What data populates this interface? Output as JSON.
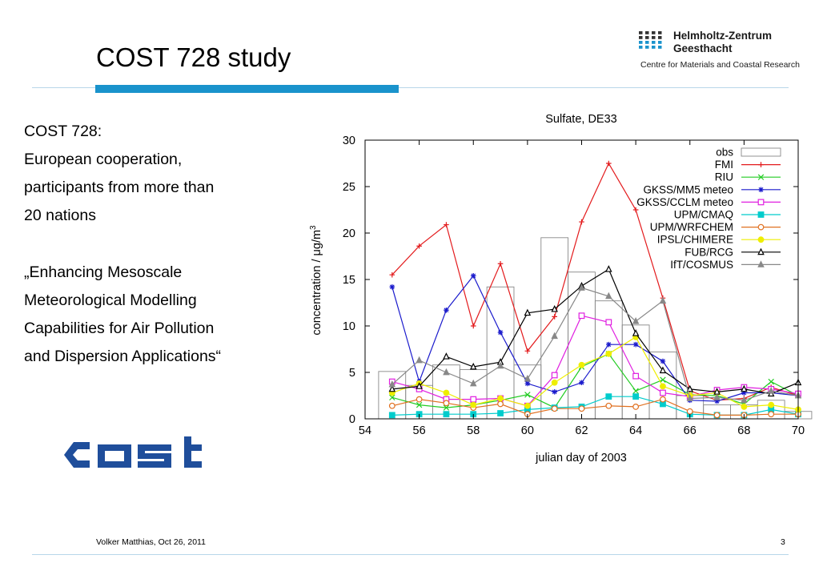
{
  "slide": {
    "title": "COST 728 study",
    "logo": {
      "name_line1": "Helmholtz-Zentrum",
      "name_line2": "Geesthacht",
      "subtitle": "Centre for Materials and Coastal Research",
      "brand_color": "#1a93cc"
    },
    "paragraphs": [
      [
        "COST 728:",
        "European cooperation,",
        "participants from more than",
        "20 nations"
      ],
      [
        "„Enhancing Mesoscale",
        "Meteorological Modelling",
        "Capabilities for Air Pollution",
        "and Dispersion Applications“"
      ]
    ],
    "cost_logo": "cost",
    "footer": {
      "author_date": "Volker Matthias, Oct 26, 2011",
      "page_number": "3"
    }
  },
  "chart_data": {
    "type": "line",
    "title": "Sulfate, DE33",
    "xlabel": "julian day of 2003",
    "ylabel_prefix": "concentration / ",
    "ylabel_unit": "μg/m",
    "ylabel_sup": "3",
    "xlim": [
      54,
      70
    ],
    "ylim": [
      0,
      30
    ],
    "xticks": [
      54,
      56,
      58,
      60,
      62,
      64,
      66,
      68,
      70
    ],
    "yticks": [
      0,
      5,
      10,
      15,
      20,
      25,
      30
    ],
    "grid": false,
    "legend_position": "top-right",
    "bars": {
      "name": "obs",
      "x": [
        55,
        56,
        57,
        58,
        59,
        60,
        61,
        62,
        63,
        64,
        65,
        66,
        67,
        68,
        69,
        70
      ],
      "values": [
        5.1,
        3.6,
        5.8,
        5.3,
        14.2,
        5.8,
        19.5,
        15.8,
        12.7,
        10.1,
        7.2,
        2.5,
        1.5,
        1.5,
        2.0,
        0.8
      ]
    },
    "x": [
      55,
      56,
      57,
      58,
      59,
      60,
      61,
      62,
      63,
      64,
      65,
      66,
      67,
      68,
      69,
      70
    ],
    "series": [
      {
        "name": "FMI",
        "color": "#e31a1c",
        "marker": "plus",
        "values": [
          15.5,
          18.6,
          20.9,
          10.0,
          16.7,
          7.3,
          11.0,
          21.2,
          27.5,
          22.5,
          13.0,
          3.0,
          2.0,
          2.2,
          3.4,
          2.5
        ]
      },
      {
        "name": "RIU",
        "color": "#22cc22",
        "marker": "x",
        "values": [
          2.3,
          1.5,
          1.2,
          1.5,
          2.0,
          2.6,
          1.2,
          5.6,
          7.0,
          3.0,
          4.2,
          2.6,
          2.5,
          1.6,
          4.0,
          2.5
        ]
      },
      {
        "name": "GKSS/MM5 meteo",
        "color": "#1a1acc",
        "marker": "star",
        "values": [
          14.2,
          4.0,
          11.7,
          15.4,
          9.3,
          3.8,
          2.9,
          3.9,
          8.0,
          8.0,
          6.2,
          2.0,
          1.9,
          2.8,
          2.8,
          2.5
        ]
      },
      {
        "name": "GKSS/CCLM meteo",
        "color": "#e020e0",
        "marker": "square-open",
        "values": [
          4.0,
          3.2,
          2.1,
          2.1,
          2.2,
          1.4,
          4.7,
          11.1,
          10.4,
          4.6,
          2.8,
          2.4,
          3.1,
          3.4,
          3.2,
          2.7
        ]
      },
      {
        "name": "UPM/CMAQ",
        "color": "#00cccc",
        "marker": "square-filled",
        "values": [
          0.4,
          0.5,
          0.5,
          0.5,
          0.6,
          1.0,
          1.2,
          1.3,
          2.4,
          2.4,
          1.6,
          0.5,
          0.4,
          0.4,
          1.0,
          0.5
        ]
      },
      {
        "name": "UPM/WRFCHEM",
        "color": "#e07020",
        "marker": "circle-open",
        "values": [
          1.4,
          2.1,
          1.7,
          1.2,
          1.6,
          0.5,
          1.1,
          1.1,
          1.4,
          1.3,
          2.1,
          0.8,
          0.4,
          0.4,
          0.5,
          0.5
        ]
      },
      {
        "name": "IPSL/CHIMERE",
        "color": "#eeee00",
        "marker": "circle-filled",
        "values": [
          2.8,
          3.8,
          2.8,
          1.5,
          2.2,
          1.4,
          3.9,
          5.8,
          7.0,
          8.8,
          3.5,
          2.5,
          2.8,
          1.3,
          1.5,
          1.0
        ]
      },
      {
        "name": "FUB/RCG",
        "color": "#000000",
        "marker": "triangle-open",
        "values": [
          3.2,
          3.5,
          6.7,
          5.6,
          6.1,
          11.4,
          11.8,
          14.3,
          16.1,
          9.2,
          5.2,
          3.2,
          2.9,
          3.2,
          2.7,
          3.9
        ]
      },
      {
        "name": "IfT/COSMUS",
        "color": "#888888",
        "marker": "triangle-filled",
        "values": [
          3.7,
          6.3,
          5.0,
          3.8,
          5.7,
          4.3,
          8.9,
          14.1,
          13.2,
          10.5,
          12.7,
          2.2,
          2.3,
          2.0,
          3.0,
          2.5
        ]
      }
    ]
  }
}
